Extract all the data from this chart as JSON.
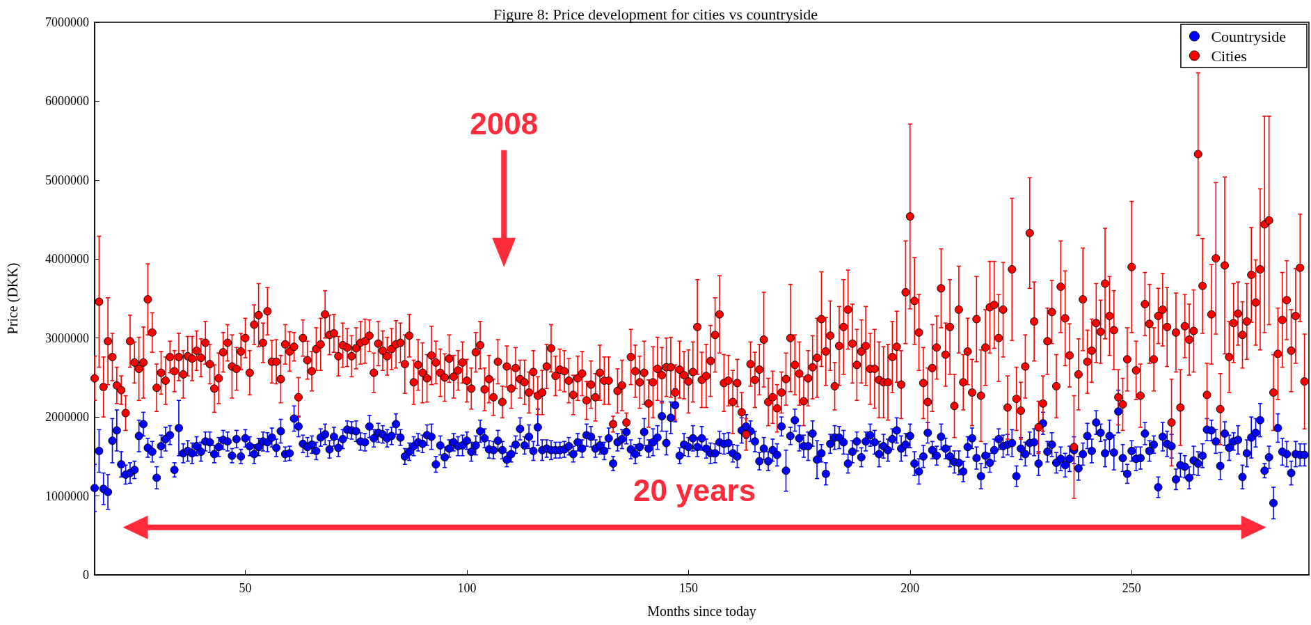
{
  "chart_data": {
    "type": "scatter",
    "title": "Figure 8: Price development for cities vs countryside",
    "xlabel": "Months since today",
    "ylabel": "Price (DKK)",
    "annotations": [
      "2008",
      "20 years"
    ],
    "xlim": [
      16,
      290
    ],
    "xticks": [
      50,
      100,
      150,
      200,
      250
    ],
    "ylim": [
      0,
      7000000
    ],
    "yticks": [
      0,
      1000000,
      2000000,
      3000000,
      4000000,
      5000000,
      6000000,
      7000000
    ],
    "legend": "top right",
    "marker": "circle",
    "x": [
      16,
      17,
      18,
      19,
      20,
      21,
      22,
      23,
      24,
      25,
      26,
      27,
      28,
      29,
      30,
      31,
      32,
      33,
      34,
      35,
      36,
      37,
      38,
      39,
      40,
      41,
      42,
      43,
      44,
      45,
      46,
      47,
      48,
      49,
      50,
      51,
      52,
      53,
      54,
      55,
      56,
      57,
      58,
      59,
      60,
      61,
      62,
      63,
      64,
      65,
      66,
      67,
      68,
      69,
      70,
      71,
      72,
      73,
      74,
      75,
      76,
      77,
      78,
      79,
      80,
      81,
      82,
      83,
      84,
      85,
      86,
      87,
      88,
      89,
      90,
      91,
      92,
      93,
      94,
      95,
      96,
      97,
      98,
      99,
      100,
      101,
      102,
      103,
      104,
      105,
      106,
      107,
      108,
      109,
      110,
      111,
      112,
      113,
      114,
      115,
      116,
      117,
      118,
      119,
      120,
      121,
      122,
      123,
      124,
      125,
      126,
      127,
      128,
      129,
      130,
      131,
      132,
      133,
      134,
      135,
      136,
      137,
      138,
      139,
      140,
      141,
      142,
      143,
      144,
      145,
      146,
      147,
      148,
      149,
      150,
      151,
      152,
      153,
      154,
      155,
      156,
      157,
      158,
      159,
      160,
      161,
      162,
      163,
      164,
      165,
      166,
      167,
      168,
      169,
      170,
      171,
      172,
      173,
      174,
      175,
      176,
      177,
      178,
      179,
      180,
      181,
      182,
      183,
      184,
      185,
      186,
      187,
      188,
      189,
      190,
      191,
      192,
      193,
      194,
      195,
      196,
      197,
      198,
      199,
      200,
      201,
      202,
      203,
      204,
      205,
      206,
      207,
      208,
      209,
      210,
      211,
      212,
      213,
      214,
      215,
      216,
      217,
      218,
      219,
      220,
      221,
      222,
      223,
      224,
      225,
      226,
      227,
      228,
      229,
      230,
      231,
      232,
      233,
      234,
      235,
      236,
      237,
      238,
      239,
      240,
      241,
      242,
      243,
      244,
      245,
      246,
      247,
      248,
      249,
      250,
      251,
      252,
      253,
      254,
      255,
      256,
      257,
      258,
      259,
      260,
      261,
      262,
      263,
      264,
      265,
      266,
      267,
      268,
      269,
      270,
      271,
      272,
      273,
      274,
      275,
      276,
      277,
      278,
      279,
      280,
      281,
      282,
      283,
      284,
      285,
      286,
      287,
      288,
      289
    ],
    "series": [
      {
        "name": "Countryside",
        "color": "#0000ff",
        "values": [
          1100000,
          1570000,
          1090000,
          1050000,
          1700000,
          1830000,
          1400000,
          1270000,
          1290000,
          1330000,
          1760000,
          1910000,
          1610000,
          1560000,
          1230000,
          1630000,
          1720000,
          1770000,
          1330000,
          1860000,
          1540000,
          1570000,
          1540000,
          1630000,
          1560000,
          1690000,
          1680000,
          1530000,
          1620000,
          1710000,
          1690000,
          1510000,
          1720000,
          1500000,
          1730000,
          1630000,
          1530000,
          1620000,
          1690000,
          1680000,
          1740000,
          1610000,
          1820000,
          1530000,
          1540000,
          1980000,
          1880000,
          1660000,
          1620000,
          1650000,
          1570000,
          1740000,
          1780000,
          1590000,
          1750000,
          1610000,
          1720000,
          1840000,
          1830000,
          1820000,
          1690000,
          1680000,
          1880000,
          1730000,
          1800000,
          1780000,
          1730000,
          1760000,
          1910000,
          1740000,
          1500000,
          1560000,
          1630000,
          1680000,
          1660000,
          1770000,
          1750000,
          1400000,
          1640000,
          1490000,
          1600000,
          1680000,
          1630000,
          1640000,
          1700000,
          1560000,
          1640000,
          1820000,
          1730000,
          1590000,
          1580000,
          1700000,
          1580000,
          1460000,
          1530000,
          1650000,
          1850000,
          1640000,
          1750000,
          1570000,
          1870000,
          1580000,
          1600000,
          1580000,
          1580000,
          1580000,
          1590000,
          1630000,
          1530000,
          1680000,
          1600000,
          1770000,
          1750000,
          1600000,
          1640000,
          1570000,
          1730000,
          1410000,
          1680000,
          1720000,
          1810000,
          1590000,
          1530000,
          1620000,
          1810000,
          1600000,
          1680000,
          1740000,
          2010000,
          1670000,
          1990000,
          2150000,
          1510000,
          1650000,
          1620000,
          1730000,
          1620000,
          1730000,
          1600000,
          1540000,
          1540000,
          1680000,
          1660000,
          1670000,
          1540000,
          1500000,
          1830000,
          1880000,
          1820000,
          1690000,
          1440000,
          1600000,
          1440000,
          1580000,
          1520000,
          1880000,
          1320000,
          1760000,
          1960000,
          1730000,
          1630000,
          1630000,
          1790000,
          1460000,
          1540000,
          1280000,
          1660000,
          1740000,
          1740000,
          1680000,
          1410000,
          1560000,
          1690000,
          1490000,
          1690000,
          1770000,
          1680000,
          1530000,
          1630000,
          1580000,
          1720000,
          1830000,
          1600000,
          1650000,
          1760000,
          1410000,
          1310000,
          1500000,
          1800000,
          1580000,
          1510000,
          1750000,
          1600000,
          1500000,
          1430000,
          1420000,
          1310000,
          1620000,
          1730000,
          1480000,
          1250000,
          1510000,
          1420000,
          1580000,
          1720000,
          1630000,
          1650000,
          1670000,
          1250000,
          1600000,
          1530000,
          1670000,
          1680000,
          1410000,
          1920000,
          1560000,
          1650000,
          1420000,
          1470000,
          1390000,
          1470000,
          1580000,
          1350000,
          1530000,
          1760000,
          1570000,
          1930000,
          1800000,
          1540000,
          1760000,
          1550000,
          2070000,
          1480000,
          1280000,
          1570000,
          1470000,
          1480000,
          1790000,
          1570000,
          1650000,
          1110000,
          1750000,
          1660000,
          1630000,
          1210000,
          1390000,
          1370000,
          1230000,
          1450000,
          1410000,
          1510000,
          1840000,
          1830000,
          1690000,
          1380000,
          1790000,
          1610000,
          1690000,
          1710000,
          1240000,
          1540000,
          1740000,
          1800000,
          1960000,
          1320000,
          1490000,
          910000,
          1860000,
          1560000,
          1530000,
          1290000,
          1530000,
          1520000,
          1520000
        ],
        "errors": [
          300000,
          270000,
          200000,
          220000,
          280000,
          260000,
          160000,
          120000,
          130000,
          110000,
          200000,
          150000,
          120000,
          130000,
          140000,
          140000,
          150000,
          120000,
          90000,
          350000,
          120000,
          130000,
          130000,
          120000,
          120000,
          120000,
          130000,
          110000,
          120000,
          120000,
          120000,
          90000,
          110000,
          90000,
          110000,
          120000,
          120000,
          110000,
          120000,
          120000,
          120000,
          110000,
          150000,
          90000,
          90000,
          160000,
          130000,
          110000,
          120000,
          110000,
          110000,
          110000,
          130000,
          110000,
          120000,
          110000,
          120000,
          110000,
          110000,
          130000,
          110000,
          110000,
          140000,
          110000,
          120000,
          110000,
          110000,
          110000,
          130000,
          100000,
          100000,
          110000,
          120000,
          110000,
          110000,
          130000,
          160000,
          100000,
          120000,
          130000,
          110000,
          110000,
          120000,
          130000,
          110000,
          120000,
          120000,
          140000,
          120000,
          110000,
          110000,
          130000,
          110000,
          90000,
          100000,
          110000,
          140000,
          110000,
          150000,
          120000,
          230000,
          130000,
          110000,
          120000,
          100000,
          100000,
          100000,
          110000,
          100000,
          110000,
          110000,
          140000,
          130000,
          110000,
          110000,
          110000,
          130000,
          90000,
          110000,
          120000,
          150000,
          120000,
          120000,
          110000,
          170000,
          110000,
          170000,
          150000,
          190000,
          150000,
          200000,
          210000,
          100000,
          140000,
          120000,
          160000,
          120000,
          150000,
          120000,
          130000,
          120000,
          140000,
          130000,
          130000,
          110000,
          140000,
          160000,
          150000,
          130000,
          130000,
          110000,
          140000,
          120000,
          140000,
          140000,
          120000,
          260000,
          110000,
          140000,
          160000,
          140000,
          180000,
          160000,
          240000,
          110000,
          140000,
          120000,
          150000,
          140000,
          150000,
          120000,
          140000,
          120000,
          120000,
          120000,
          140000,
          150000,
          160000,
          150000,
          140000,
          130000,
          160000,
          160000,
          140000,
          150000,
          150000,
          160000,
          140000,
          130000,
          110000,
          120000,
          160000,
          130000,
          130000,
          140000,
          150000,
          130000,
          130000,
          130000,
          140000,
          160000,
          150000,
          120000,
          140000,
          130000,
          140000,
          130000,
          170000,
          130000,
          140000,
          150000,
          140000,
          170000,
          150000,
          140000,
          130000,
          150000,
          130000,
          150000,
          150000,
          160000,
          170000,
          150000,
          140000,
          160000,
          150000,
          150000,
          110000,
          170000,
          200000,
          220000,
          270000,
          170000,
          120000,
          130000,
          150000,
          140000,
          140000,
          130000,
          110000,
          130000,
          180000,
          160000,
          150000,
          130000,
          150000,
          140000,
          140000,
          180000,
          150000,
          150000,
          140000,
          130000,
          150000,
          170000,
          150000,
          160000,
          110000,
          180000,
          150000,
          170000,
          260000,
          180000,
          210000,
          90000,
          140000,
          200000,
          180000,
          170000,
          160000,
          150000,
          160000,
          140000,
          140000
        ]
      },
      {
        "name": "Cities",
        "color": "#ff0000",
        "values": [
          2490000,
          3460000,
          2380000,
          2960000,
          2760000,
          2400000,
          2340000,
          2050000,
          2960000,
          2690000,
          2610000,
          2690000,
          3490000,
          3070000,
          2370000,
          2560000,
          2460000,
          2760000,
          2580000,
          2760000,
          2540000,
          2770000,
          2740000,
          2840000,
          2750000,
          2940000,
          2670000,
          2360000,
          2490000,
          2820000,
          2940000,
          2640000,
          2610000,
          2830000,
          3000000,
          2560000,
          3170000,
          3290000,
          2940000,
          3340000,
          2700000,
          2700000,
          2480000,
          2920000,
          2830000,
          2890000,
          2250000,
          3000000,
          2720000,
          2580000,
          2860000,
          2920000,
          3300000,
          3040000,
          3060000,
          2770000,
          2910000,
          2880000,
          2770000,
          2870000,
          2940000,
          2960000,
          3030000,
          2560000,
          2930000,
          2840000,
          2770000,
          2860000,
          2920000,
          2940000,
          2670000,
          3030000,
          2440000,
          2660000,
          2560000,
          2490000,
          2780000,
          2690000,
          2560000,
          2500000,
          2740000,
          2510000,
          2590000,
          2690000,
          2460000,
          2360000,
          2820000,
          2910000,
          2350000,
          2480000,
          2250000,
          2700000,
          2190000,
          2640000,
          2360000,
          2620000,
          2480000,
          2440000,
          2310000,
          2570000,
          2270000,
          2310000,
          2640000,
          2870000,
          2520000,
          2600000,
          2580000,
          2460000,
          2280000,
          2490000,
          2550000,
          2210000,
          2410000,
          2250000,
          2560000,
          2460000,
          2460000,
          1910000,
          2330000,
          2400000,
          1930000,
          2760000,
          2580000,
          2440000,
          2560000,
          2170000,
          2440000,
          2610000,
          2530000,
          2630000,
          2630000,
          2310000,
          2600000,
          2530000,
          2450000,
          2570000,
          3140000,
          2470000,
          2520000,
          2710000,
          3040000,
          3300000,
          2430000,
          2460000,
          2190000,
          2430000,
          2060000,
          1780000,
          2670000,
          2470000,
          2600000,
          2980000,
          2190000,
          2250000,
          2110000,
          2310000,
          2480000,
          3000000,
          2660000,
          2550000,
          2200000,
          2490000,
          2630000,
          2750000,
          3240000,
          2830000,
          3030000,
          2390000,
          2900000,
          3140000,
          3360000,
          2930000,
          2660000,
          2830000,
          2900000,
          2610000,
          2610000,
          2470000,
          2440000,
          2440000,
          2760000,
          2890000,
          2410000,
          3580000,
          4540000,
          3470000,
          3070000,
          2430000,
          2190000,
          2620000,
          2880000,
          3630000,
          2790000,
          3140000,
          2140000,
          3360000,
          2440000,
          2830000,
          2310000,
          3240000,
          2270000,
          2880000,
          3390000,
          3420000,
          3000000,
          3360000,
          2120000,
          3870000,
          2230000,
          2080000,
          2640000,
          4330000,
          3210000,
          1870000,
          2170000,
          2960000,
          3330000,
          2390000,
          3650000,
          3250000,
          2780000,
          1620000,
          2540000,
          3490000,
          2700000,
          2840000,
          3190000,
          3080000,
          3690000,
          3280000,
          3100000,
          2250000,
          2160000,
          2730000,
          3900000,
          2590000,
          2270000,
          3430000,
          3180000,
          2730000,
          3280000,
          3360000,
          3140000,
          1930000,
          3070000,
          2120000,
          3150000,
          2980000,
          3090000,
          5330000,
          3660000,
          2280000,
          3300000,
          4010000,
          2100000,
          3920000,
          2760000,
          3190000,
          3310000,
          3040000,
          3210000,
          3800000,
          3450000,
          3870000,
          4440000,
          4490000,
          2310000,
          2800000,
          3230000,
          3480000,
          2840000,
          3280000,
          3890000,
          2450000
        ],
        "errors": [
          280000,
          830000,
          380000,
          550000,
          300000,
          230000,
          180000,
          220000,
          330000,
          260000,
          400000,
          450000,
          450000,
          250000,
          300000,
          270000,
          300000,
          200000,
          260000,
          300000,
          300000,
          250000,
          280000,
          250000,
          240000,
          270000,
          250000,
          300000,
          320000,
          250000,
          230000,
          400000,
          270000,
          230000,
          250000,
          280000,
          250000,
          400000,
          250000,
          300000,
          270000,
          280000,
          300000,
          250000,
          250000,
          180000,
          250000,
          230000,
          240000,
          250000,
          270000,
          330000,
          300000,
          250000,
          240000,
          250000,
          280000,
          240000,
          260000,
          260000,
          270000,
          280000,
          200000,
          250000,
          280000,
          250000,
          240000,
          260000,
          300000,
          250000,
          370000,
          270000,
          280000,
          320000,
          380000,
          300000,
          370000,
          270000,
          300000,
          300000,
          300000,
          270000,
          250000,
          260000,
          270000,
          260000,
          250000,
          300000,
          270000,
          300000,
          230000,
          280000,
          200000,
          260000,
          250000,
          260000,
          240000,
          280000,
          260000,
          270000,
          240000,
          280000,
          280000,
          300000,
          250000,
          260000,
          260000,
          280000,
          250000,
          280000,
          280000,
          240000,
          300000,
          300000,
          350000,
          300000,
          300000,
          100000,
          280000,
          320000,
          120000,
          350000,
          330000,
          330000,
          400000,
          300000,
          450000,
          400000,
          350000,
          370000,
          380000,
          350000,
          360000,
          300000,
          400000,
          380000,
          600000,
          350000,
          400000,
          450000,
          470000,
          490000,
          360000,
          320000,
          400000,
          300000,
          250000,
          200000,
          280000,
          350000,
          320000,
          600000,
          300000,
          330000,
          300000,
          260000,
          330000,
          680000,
          380000,
          400000,
          310000,
          350000,
          400000,
          500000,
          600000,
          430000,
          440000,
          300000,
          500000,
          600000,
          500000,
          500000,
          450000,
          400000,
          500000,
          450000,
          500000,
          480000,
          450000,
          480000,
          450000,
          450000,
          430000,
          650000,
          1170000,
          550000,
          480000,
          450000,
          430000,
          550000,
          400000,
          500000,
          400000,
          600000,
          400000,
          550000,
          350000,
          420000,
          420000,
          540000,
          580000,
          480000,
          580000,
          550000,
          550000,
          600000,
          400000,
          900000,
          400000,
          360000,
          400000,
          700000,
          500000,
          330000,
          350000,
          420000,
          400000,
          400000,
          580000,
          600000,
          400000,
          650000,
          450000,
          650000,
          400000,
          400000,
          500000,
          400000,
          700000,
          500000,
          500000,
          350000,
          330000,
          400000,
          830000,
          370000,
          400000,
          400000,
          500000,
          400000,
          350000,
          460000,
          500000,
          550000,
          500000,
          480000,
          400000,
          450000,
          520000,
          1030000,
          600000,
          400000,
          630000,
          960000,
          450000,
          1120000,
          450000,
          500000,
          400000,
          420000,
          480000,
          600000,
          540000,
          1020000,
          1370000,
          1320000,
          480000,
          580000,
          600000,
          500000,
          520000,
          600000,
          680000,
          600000
        ]
      }
    ]
  }
}
